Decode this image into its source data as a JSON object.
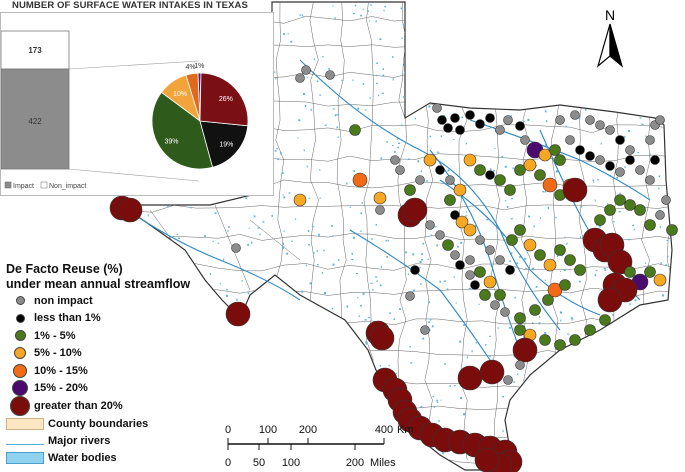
{
  "title": "NUMBER OF SURFACE WATER INTAKES IN TEXAS",
  "bar_chart": {
    "type": "stacked-bar",
    "segments": [
      {
        "name": "Impact",
        "value": 422,
        "color": "#8c8c8c"
      },
      {
        "name": "Non_impact",
        "value": 173,
        "color": "#ffffff"
      }
    ],
    "legend": [
      "Impact",
      "Non_impact"
    ]
  },
  "pie_chart": {
    "type": "pie",
    "slices": [
      {
        "label": "26%",
        "value": 26,
        "color": "#7b0f16"
      },
      {
        "label": "19%",
        "value": 19,
        "color": "#111111"
      },
      {
        "label": "39%",
        "value": 39,
        "color": "#2e5a1c"
      },
      {
        "label": "10%",
        "value": 10,
        "color": "#f2a33a"
      },
      {
        "label": "4%",
        "value": 4,
        "color": "#e06a1b"
      },
      {
        "label": "1%",
        "value": 1,
        "color": "#5b1a7e"
      }
    ]
  },
  "legend": {
    "title_line1": "De Facto Reuse (%)",
    "title_line2": "under mean annual streamflow",
    "classes": [
      {
        "label": "non impact",
        "color": "#8c8c8c",
        "size": 9
      },
      {
        "label": "less than 1%",
        "color": "#000000",
        "size": 9
      },
      {
        "label": "1% - 5%",
        "color": "#4a7a1c",
        "size": 11
      },
      {
        "label": "5% - 10%",
        "color": "#f7a823",
        "size": 12
      },
      {
        "label": "10% - 15%",
        "color": "#f26a15",
        "size": 14
      },
      {
        "label": "15% - 20%",
        "color": "#4b0a6e",
        "size": 16
      },
      {
        "label": "greater than 20%",
        "color": "#7a0c0c",
        "size": 20
      }
    ],
    "reference": [
      {
        "label": "County boundaries",
        "fill": "#fde7c2",
        "stroke": "#c9b28a",
        "kind": "box"
      },
      {
        "label": "Major rivers",
        "fill": "none",
        "stroke": "#5aaed8",
        "kind": "line"
      },
      {
        "label": "Water bodies",
        "fill": "#8fd3f0",
        "stroke": "#4a9ec7",
        "kind": "box"
      }
    ]
  },
  "north_arrow": {
    "label": "N"
  },
  "scalebar": {
    "km_ticks": [
      "0",
      "100",
      "200",
      "400"
    ],
    "km_unit": "Km",
    "mile_ticks": [
      "0",
      "50",
      "100",
      "200"
    ],
    "mile_unit": "Miles"
  },
  "colors": {
    "state_fill": "#ffffff",
    "county_line": "#555555",
    "river": "#2e88c4",
    "water": "#5fb4dc"
  }
}
